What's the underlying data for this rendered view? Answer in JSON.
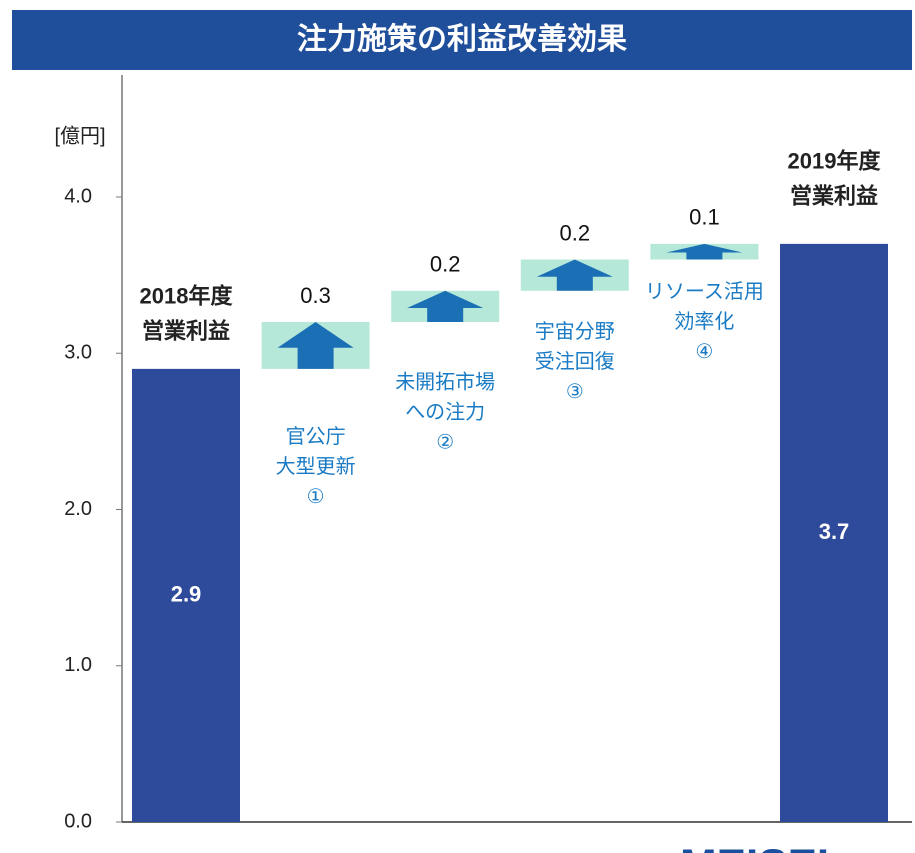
{
  "chart_data": {
    "type": "waterfall",
    "title": "注力施策の利益改善効果",
    "unit_label": "[億円]",
    "categories": [
      [
        "2018年度",
        "営業利益"
      ],
      [
        "官公庁",
        "大型更新",
        "①"
      ],
      [
        "未開拓市場",
        "への注力",
        "②"
      ],
      [
        "宇宙分野",
        "受注回復",
        "③"
      ],
      [
        "リソース活用",
        "効率化",
        "④"
      ],
      [
        "2019年度",
        "営業利益"
      ]
    ],
    "measure": [
      "absolute",
      "relative",
      "relative",
      "relative",
      "relative",
      "absolute"
    ],
    "values": [
      2.9,
      0.3,
      0.2,
      0.2,
      0.1,
      3.7
    ],
    "total_color": "#2e4a9a",
    "increase_color": "#b5e8d9",
    "arrow_color": "#1a6fb5",
    "ylim": [
      0,
      4
    ],
    "yticks": [
      {
        "value": 0,
        "label": "0.0"
      },
      {
        "value": 1,
        "label": "1.0"
      },
      {
        "value": 2,
        "label": "2.0"
      },
      {
        "value": 3,
        "label": "3.0"
      },
      {
        "value": 4,
        "label": "4.0"
      }
    ],
    "logo": "MEISEI"
  }
}
